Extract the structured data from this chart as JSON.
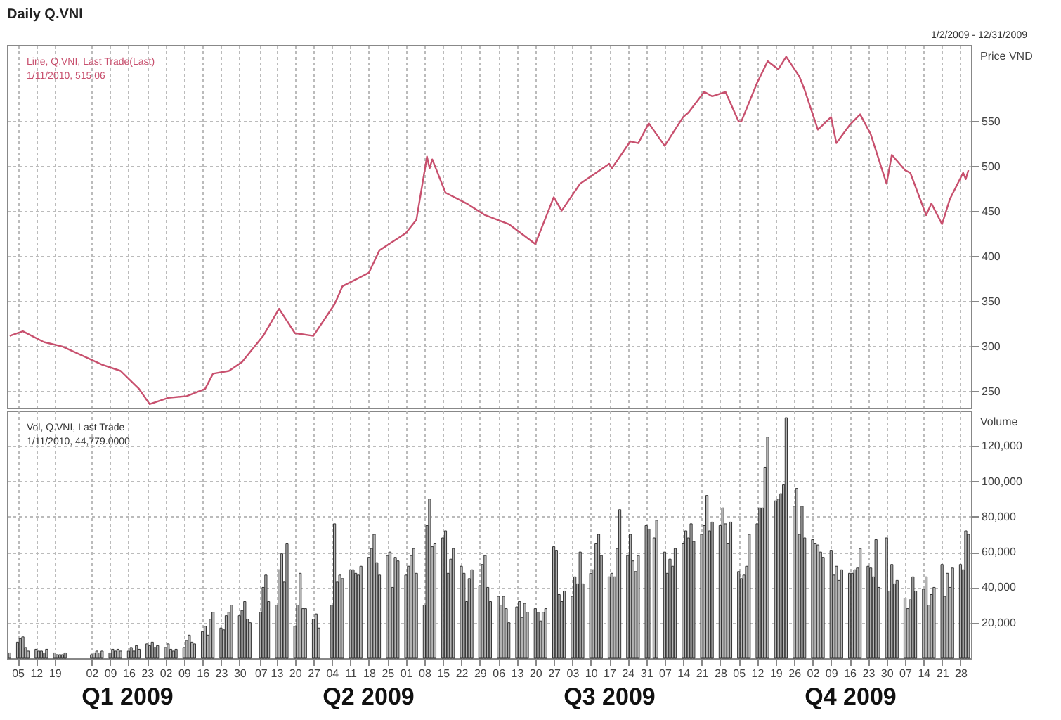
{
  "chart_data": [
    {
      "type": "line",
      "title": "Daily Q.VNI",
      "subtitle": "1/2/2009 - 12/31/2009",
      "ylabel": "Price VND",
      "color": "#c8506e",
      "grid": true,
      "tick_labels": "y",
      "annotations": [
        "Line, Q.VNI, Last Trade(Last)",
        "1/11/2010, 515.06"
      ],
      "xlim": [
        "2009-01-01",
        "2010-01-01"
      ],
      "ylim": [
        232,
        635
      ],
      "yticks": [
        250,
        300,
        350,
        400,
        450,
        500,
        550
      ],
      "xticks": [
        {
          "value": "2009-01-05",
          "label": null
        },
        {
          "value": "2009-01-12",
          "label": null
        },
        {
          "value": "2009-01-19",
          "label": null
        },
        {
          "value": "2009-02-02",
          "label": null
        },
        {
          "value": "2009-02-09",
          "label": null
        },
        {
          "value": "2009-02-16",
          "label": null
        },
        {
          "value": "2009-02-23",
          "label": null
        },
        {
          "value": "2009-03-02",
          "label": null
        },
        {
          "value": "2009-03-09",
          "label": null
        },
        {
          "value": "2009-03-16",
          "label": null
        },
        {
          "value": "2009-03-23",
          "label": null
        },
        {
          "value": "2009-03-30",
          "label": null
        },
        {
          "value": "2009-04-07",
          "label": null
        },
        {
          "value": "2009-04-13",
          "label": null
        },
        {
          "value": "2009-04-20",
          "label": null
        },
        {
          "value": "2009-04-27",
          "label": null
        },
        {
          "value": "2009-05-04",
          "label": null
        },
        {
          "value": "2009-05-11",
          "label": null
        },
        {
          "value": "2009-05-18",
          "label": null
        },
        {
          "value": "2009-05-25",
          "label": null
        },
        {
          "value": "2009-06-01",
          "label": null
        },
        {
          "value": "2009-06-08",
          "label": null
        },
        {
          "value": "2009-06-15",
          "label": null
        },
        {
          "value": "2009-06-22",
          "label": null
        },
        {
          "value": "2009-06-29",
          "label": null
        },
        {
          "value": "2009-07-06",
          "label": null
        },
        {
          "value": "2009-07-13",
          "label": null
        },
        {
          "value": "2009-07-20",
          "label": null
        },
        {
          "value": "2009-07-27",
          "label": null
        },
        {
          "value": "2009-08-03",
          "label": null
        },
        {
          "value": "2009-08-10",
          "label": null
        },
        {
          "value": "2009-08-17",
          "label": null
        },
        {
          "value": "2009-08-24",
          "label": null
        },
        {
          "value": "2009-08-31",
          "label": null
        },
        {
          "value": "2009-09-07",
          "label": null
        },
        {
          "value": "2009-09-14",
          "label": null
        },
        {
          "value": "2009-09-21",
          "label": null
        },
        {
          "value": "2009-09-28",
          "label": null
        },
        {
          "value": "2009-10-05",
          "label": null
        },
        {
          "value": "2009-10-12",
          "label": null
        },
        {
          "value": "2009-10-19",
          "label": null
        },
        {
          "value": "2009-10-26",
          "label": null
        },
        {
          "value": "2009-11-02",
          "label": null
        },
        {
          "value": "2009-11-09",
          "label": null
        },
        {
          "value": "2009-11-16",
          "label": null
        },
        {
          "value": "2009-11-23",
          "label": null
        },
        {
          "value": "2009-11-30",
          "label": null
        },
        {
          "value": "2009-12-07",
          "label": null
        },
        {
          "value": "2009-12-14",
          "label": null
        },
        {
          "value": "2009-12-21",
          "label": null
        },
        {
          "value": "2009-12-28",
          "label": null
        }
      ],
      "x": [
        "2009-01-02",
        "2009-01-07",
        "2009-01-15",
        "2009-01-22",
        "2009-02-06",
        "2009-02-13",
        "2009-02-20",
        "2009-02-24",
        "2009-03-03",
        "2009-03-10",
        "2009-03-17",
        "2009-03-20",
        "2009-03-26",
        "2009-03-31",
        "2009-04-08",
        "2009-04-14",
        "2009-04-20",
        "2009-04-27",
        "2009-05-05",
        "2009-05-08",
        "2009-05-18",
        "2009-05-22",
        "2009-06-01",
        "2009-06-05",
        "2009-06-09",
        "2009-06-10",
        "2009-06-11",
        "2009-06-16",
        "2009-06-24",
        "2009-07-01",
        "2009-07-10",
        "2009-07-20",
        "2009-07-27",
        "2009-07-30",
        "2009-08-06",
        "2009-08-17",
        "2009-08-18",
        "2009-08-25",
        "2009-08-28",
        "2009-09-01",
        "2009-09-07",
        "2009-09-14",
        "2009-09-16",
        "2009-09-22",
        "2009-09-25",
        "2009-09-30",
        "2009-10-05",
        "2009-10-06",
        "2009-10-12",
        "2009-10-16",
        "2009-10-20",
        "2009-10-23",
        "2009-10-28",
        "2009-10-30",
        "2009-11-04",
        "2009-11-09",
        "2009-11-11",
        "2009-11-16",
        "2009-11-20",
        "2009-11-24",
        "2009-11-30",
        "2009-12-02",
        "2009-12-07",
        "2009-12-09",
        "2009-12-15",
        "2009-12-17",
        "2009-12-21",
        "2009-12-24",
        "2009-12-29",
        "2009-12-30",
        "2009-12-31"
      ],
      "values": [
        312,
        317,
        305,
        300,
        280,
        273,
        253,
        236,
        243,
        245,
        253,
        270,
        273,
        283,
        312,
        342,
        315,
        312,
        347,
        367,
        382,
        407,
        426,
        441,
        511,
        498,
        508,
        471,
        459,
        446,
        436,
        414,
        466,
        451,
        481,
        503,
        498,
        528,
        526,
        548,
        523,
        555,
        560,
        583,
        578,
        583,
        550,
        550,
        593,
        617,
        608,
        622,
        600,
        585,
        541,
        555,
        526,
        546,
        558,
        536,
        481,
        513,
        496,
        493,
        446,
        459,
        436,
        464,
        493,
        486,
        496
      ]
    },
    {
      "type": "bar",
      "ylabel": "Volume",
      "color": "#b4b4b4",
      "grid": true,
      "annotations": [
        "Vol, Q.VNI, Last Trade",
        "1/11/2010, 44,779.0000",
        "Q1 2009",
        "Q2 2009",
        "Q3 2009",
        "Q4 2009"
      ],
      "xlim": [
        "2009-01-01",
        "2010-01-01"
      ],
      "ylim": [
        0,
        140000
      ],
      "yticks": [
        {
          "value": 20000,
          "label": "20,000"
        },
        {
          "value": 40000,
          "label": "40,000"
        },
        {
          "value": 60000,
          "label": "60,000"
        },
        {
          "value": 80000,
          "label": "80,000"
        },
        {
          "value": 100000,
          "label": "100,000"
        },
        {
          "value": 120000,
          "label": "120,000"
        }
      ],
      "xticks": [
        {
          "value": "2009-01-05",
          "label": "05"
        },
        {
          "value": "2009-01-12",
          "label": "12"
        },
        {
          "value": "2009-01-19",
          "label": "19"
        },
        {
          "value": "2009-02-02",
          "label": "02"
        },
        {
          "value": "2009-02-09",
          "label": "09"
        },
        {
          "value": "2009-02-16",
          "label": "16"
        },
        {
          "value": "2009-02-23",
          "label": "23"
        },
        {
          "value": "2009-03-02",
          "label": "02"
        },
        {
          "value": "2009-03-09",
          "label": "09"
        },
        {
          "value": "2009-03-16",
          "label": "16"
        },
        {
          "value": "2009-03-23",
          "label": "23"
        },
        {
          "value": "2009-03-30",
          "label": "30"
        },
        {
          "value": "2009-04-07",
          "label": "07"
        },
        {
          "value": "2009-04-13",
          "label": "13"
        },
        {
          "value": "2009-04-20",
          "label": "20"
        },
        {
          "value": "2009-04-27",
          "label": "27"
        },
        {
          "value": "2009-05-04",
          "label": "04"
        },
        {
          "value": "2009-05-11",
          "label": "11"
        },
        {
          "value": "2009-05-18",
          "label": "18"
        },
        {
          "value": "2009-05-25",
          "label": "25"
        },
        {
          "value": "2009-06-01",
          "label": "01"
        },
        {
          "value": "2009-06-08",
          "label": "08"
        },
        {
          "value": "2009-06-15",
          "label": "15"
        },
        {
          "value": "2009-06-22",
          "label": "22"
        },
        {
          "value": "2009-06-29",
          "label": "29"
        },
        {
          "value": "2009-07-06",
          "label": "06"
        },
        {
          "value": "2009-07-13",
          "label": "13"
        },
        {
          "value": "2009-07-20",
          "label": "20"
        },
        {
          "value": "2009-07-27",
          "label": "27"
        },
        {
          "value": "2009-08-03",
          "label": "03"
        },
        {
          "value": "2009-08-10",
          "label": "10"
        },
        {
          "value": "2009-08-17",
          "label": "17"
        },
        {
          "value": "2009-08-24",
          "label": "24"
        },
        {
          "value": "2009-08-31",
          "label": "31"
        },
        {
          "value": "2009-09-07",
          "label": "07"
        },
        {
          "value": "2009-09-14",
          "label": "14"
        },
        {
          "value": "2009-09-21",
          "label": "21"
        },
        {
          "value": "2009-09-28",
          "label": "28"
        },
        {
          "value": "2009-10-05",
          "label": "05"
        },
        {
          "value": "2009-10-12",
          "label": "12"
        },
        {
          "value": "2009-10-19",
          "label": "19"
        },
        {
          "value": "2009-10-26",
          "label": "26"
        },
        {
          "value": "2009-11-02",
          "label": "02"
        },
        {
          "value": "2009-11-09",
          "label": "09"
        },
        {
          "value": "2009-11-16",
          "label": "16"
        },
        {
          "value": "2009-11-23",
          "label": "23"
        },
        {
          "value": "2009-11-30",
          "label": "30"
        },
        {
          "value": "2009-12-07",
          "label": "07"
        },
        {
          "value": "2009-12-14",
          "label": "14"
        },
        {
          "value": "2009-12-21",
          "label": "21"
        },
        {
          "value": "2009-12-28",
          "label": "28"
        }
      ],
      "x": [
        "2009-01-02",
        "2009-01-05",
        "2009-01-06",
        "2009-01-07",
        "2009-01-08",
        "2009-01-09",
        "2009-01-12",
        "2009-01-13",
        "2009-01-14",
        "2009-01-15",
        "2009-01-16",
        "2009-01-19",
        "2009-01-20",
        "2009-01-21",
        "2009-01-22",
        "2009-01-23",
        "2009-02-02",
        "2009-02-03",
        "2009-02-04",
        "2009-02-05",
        "2009-02-06",
        "2009-02-09",
        "2009-02-10",
        "2009-02-11",
        "2009-02-12",
        "2009-02-13",
        "2009-02-16",
        "2009-02-17",
        "2009-02-18",
        "2009-02-19",
        "2009-02-20",
        "2009-02-23",
        "2009-02-24",
        "2009-02-25",
        "2009-02-26",
        "2009-02-27",
        "2009-03-02",
        "2009-03-03",
        "2009-03-04",
        "2009-03-05",
        "2009-03-06",
        "2009-03-09",
        "2009-03-10",
        "2009-03-11",
        "2009-03-12",
        "2009-03-13",
        "2009-03-16",
        "2009-03-17",
        "2009-03-18",
        "2009-03-19",
        "2009-03-20",
        "2009-03-23",
        "2009-03-24",
        "2009-03-25",
        "2009-03-26",
        "2009-03-27",
        "2009-03-30",
        "2009-03-31",
        "2009-04-01",
        "2009-04-02",
        "2009-04-03",
        "2009-04-07",
        "2009-04-08",
        "2009-04-09",
        "2009-04-10",
        "2009-04-13",
        "2009-04-14",
        "2009-04-15",
        "2009-04-16",
        "2009-04-17",
        "2009-04-20",
        "2009-04-21",
        "2009-04-22",
        "2009-04-23",
        "2009-04-24",
        "2009-04-27",
        "2009-04-28",
        "2009-04-29",
        "2009-05-04",
        "2009-05-05",
        "2009-05-06",
        "2009-05-07",
        "2009-05-08",
        "2009-05-11",
        "2009-05-12",
        "2009-05-13",
        "2009-05-14",
        "2009-05-15",
        "2009-05-18",
        "2009-05-19",
        "2009-05-20",
        "2009-05-21",
        "2009-05-22",
        "2009-05-25",
        "2009-05-26",
        "2009-05-27",
        "2009-05-28",
        "2009-05-29",
        "2009-06-01",
        "2009-06-02",
        "2009-06-03",
        "2009-06-04",
        "2009-06-05",
        "2009-06-08",
        "2009-06-09",
        "2009-06-10",
        "2009-06-11",
        "2009-06-12",
        "2009-06-15",
        "2009-06-16",
        "2009-06-17",
        "2009-06-18",
        "2009-06-19",
        "2009-06-22",
        "2009-06-23",
        "2009-06-24",
        "2009-06-25",
        "2009-06-26",
        "2009-06-29",
        "2009-06-30",
        "2009-07-01",
        "2009-07-02",
        "2009-07-03",
        "2009-07-06",
        "2009-07-07",
        "2009-07-08",
        "2009-07-09",
        "2009-07-10",
        "2009-07-13",
        "2009-07-14",
        "2009-07-15",
        "2009-07-16",
        "2009-07-17",
        "2009-07-20",
        "2009-07-21",
        "2009-07-22",
        "2009-07-23",
        "2009-07-24",
        "2009-07-27",
        "2009-07-28",
        "2009-07-29",
        "2009-07-30",
        "2009-07-31",
        "2009-08-03",
        "2009-08-04",
        "2009-08-05",
        "2009-08-06",
        "2009-08-07",
        "2009-08-10",
        "2009-08-11",
        "2009-08-12",
        "2009-08-13",
        "2009-08-14",
        "2009-08-17",
        "2009-08-18",
        "2009-08-19",
        "2009-08-20",
        "2009-08-21",
        "2009-08-24",
        "2009-08-25",
        "2009-08-26",
        "2009-08-27",
        "2009-08-28",
        "2009-08-31",
        "2009-09-01",
        "2009-09-03",
        "2009-09-04",
        "2009-09-07",
        "2009-09-08",
        "2009-09-09",
        "2009-09-10",
        "2009-09-11",
        "2009-09-14",
        "2009-09-15",
        "2009-09-16",
        "2009-09-17",
        "2009-09-18",
        "2009-09-21",
        "2009-09-22",
        "2009-09-23",
        "2009-09-24",
        "2009-09-25",
        "2009-09-28",
        "2009-09-29",
        "2009-09-30",
        "2009-10-01",
        "2009-10-02",
        "2009-10-05",
        "2009-10-06",
        "2009-10-07",
        "2009-10-08",
        "2009-10-09",
        "2009-10-12",
        "2009-10-13",
        "2009-10-14",
        "2009-10-15",
        "2009-10-16",
        "2009-10-19",
        "2009-10-20",
        "2009-10-21",
        "2009-10-22",
        "2009-10-23",
        "2009-10-26",
        "2009-10-27",
        "2009-10-28",
        "2009-10-29",
        "2009-10-30",
        "2009-11-02",
        "2009-11-03",
        "2009-11-04",
        "2009-11-05",
        "2009-11-06",
        "2009-11-09",
        "2009-11-10",
        "2009-11-11",
        "2009-11-12",
        "2009-11-13",
        "2009-11-16",
        "2009-11-17",
        "2009-11-18",
        "2009-11-19",
        "2009-11-20",
        "2009-11-23",
        "2009-11-24",
        "2009-11-25",
        "2009-11-26",
        "2009-11-27",
        "2009-11-30",
        "2009-12-01",
        "2009-12-02",
        "2009-12-03",
        "2009-12-04",
        "2009-12-07",
        "2009-12-08",
        "2009-12-09",
        "2009-12-10",
        "2009-12-11",
        "2009-12-14",
        "2009-12-15",
        "2009-12-16",
        "2009-12-17",
        "2009-12-18",
        "2009-12-21",
        "2009-12-22",
        "2009-12-23",
        "2009-12-24",
        "2009-12-25",
        "2009-12-28",
        "2009-12-29",
        "2009-12-30",
        "2009-12-31"
      ],
      "values": [
        3000,
        9000,
        11000,
        12000,
        6000,
        4000,
        5000,
        4000,
        4000,
        3000,
        5000,
        3000,
        2000,
        2000,
        2000,
        3000,
        2000,
        3000,
        4000,
        3000,
        4000,
        3000,
        5000,
        4000,
        5000,
        4000,
        4000,
        6000,
        4000,
        7000,
        5000,
        8000,
        7000,
        9000,
        6000,
        7000,
        6000,
        8000,
        5000,
        4000,
        5000,
        6000,
        10000,
        13000,
        9000,
        8000,
        15000,
        18000,
        13000,
        22000,
        26000,
        17000,
        16000,
        24000,
        26000,
        30000,
        24000,
        27000,
        32000,
        22000,
        20000,
        26000,
        40000,
        47000,
        32000,
        30000,
        50000,
        59000,
        43000,
        65000,
        18000,
        30000,
        48000,
        28000,
        28000,
        22000,
        25000,
        17000,
        30000,
        76000,
        43000,
        47000,
        45000,
        50000,
        50000,
        48000,
        47000,
        52000,
        57000,
        62000,
        70000,
        54000,
        47000,
        58000,
        60000,
        40000,
        57000,
        55000,
        47000,
        52000,
        58000,
        62000,
        48000,
        30000,
        75000,
        90000,
        63000,
        65000,
        68000,
        72000,
        48000,
        56000,
        62000,
        52000,
        48000,
        32000,
        45000,
        50000,
        41000,
        53000,
        58000,
        40000,
        32000,
        35000,
        30000,
        35000,
        28000,
        20000,
        29000,
        32000,
        23000,
        31000,
        26000,
        28000,
        26000,
        21000,
        26000,
        28000,
        63000,
        61000,
        36000,
        32000,
        38000,
        35000,
        46000,
        42000,
        60000,
        42000,
        48000,
        50000,
        65000,
        70000,
        58000,
        46000,
        48000,
        46000,
        62000,
        84000,
        58000,
        70000,
        55000,
        49000,
        58000,
        75000,
        73000,
        68000,
        78000,
        60000,
        48000,
        56000,
        52000,
        62000,
        65000,
        72000,
        68000,
        76000,
        66000,
        70000,
        75000,
        92000,
        72000,
        77000,
        75000,
        85000,
        76000,
        65000,
        77000,
        49000,
        45000,
        47000,
        52000,
        70000,
        76000,
        85000,
        85000,
        108000,
        125000,
        89000,
        90000,
        93000,
        98000,
        136000,
        86000,
        96000,
        70000,
        86000,
        68000,
        67000,
        65000,
        64000,
        60000,
        57000,
        61000,
        47000,
        52000,
        44000,
        50000,
        48000,
        48000,
        50000,
        51000,
        62000,
        52000,
        51000,
        46000,
        67000,
        40000,
        68000,
        38000,
        53000,
        42000,
        44000,
        34000,
        28000,
        33000,
        46000,
        38000,
        39000,
        46000,
        30000,
        36000,
        40000,
        53000,
        35000,
        48000,
        40000,
        51000,
        53000,
        50000,
        72000,
        70000
      ]
    }
  ]
}
